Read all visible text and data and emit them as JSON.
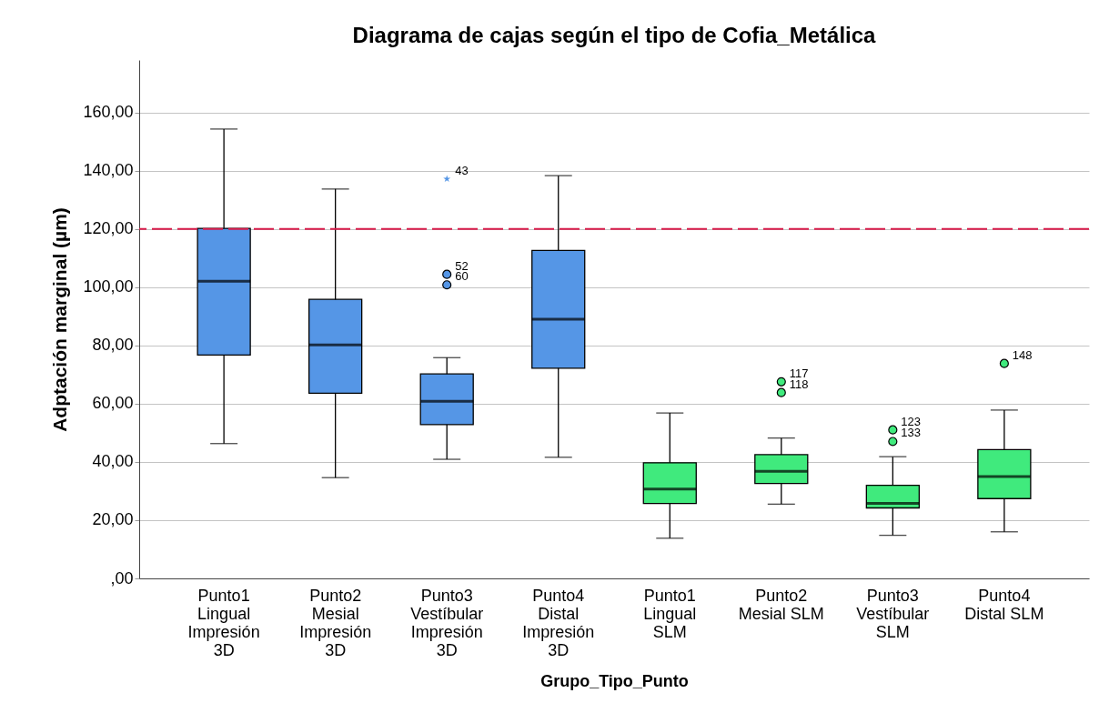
{
  "chart_data": {
    "type": "box",
    "title": "Diagrama de cajas según el tipo de Cofia_Metálica",
    "xlabel": "Grupo_Tipo_Punto",
    "ylabel": "Adptación marginal (µm)",
    "categories": [
      "Punto1 Lingual Impresión 3D",
      "Punto2 Mesial Impresión 3D",
      "Punto3 Vestíbular Impresión 3D",
      "Punto4 Distal Impresión 3D",
      "Punto1 Lingual SLM",
      "Punto2 Mesial SLM",
      "Punto3 Vestíbular SLM",
      "Punto4 Distal SLM"
    ],
    "colors": [
      "#5596e6",
      "#5596e6",
      "#5596e6",
      "#5596e6",
      "#40ea7d",
      "#40ea7d",
      "#40ea7d",
      "#40ea7d"
    ],
    "boxes": [
      {
        "low": 46.3,
        "q1": 76.7,
        "median": 102,
        "q3": 120.2,
        "high": 154.3
      },
      {
        "low": 34.6,
        "q1": 63.6,
        "median": 80.2,
        "q3": 95.8,
        "high": 133.7
      },
      {
        "low": 40.9,
        "q1": 52.8,
        "median": 60.8,
        "q3": 70.2,
        "high": 75.8
      },
      {
        "low": 41.6,
        "q1": 72.2,
        "median": 89,
        "q3": 112.6,
        "high": 138.3
      },
      {
        "low": 13.8,
        "q1": 25.7,
        "median": 30.7,
        "q3": 39.7,
        "high": 56.8
      },
      {
        "low": 25.5,
        "q1": 32.6,
        "median": 36.8,
        "q3": 42.5,
        "high": 48.2
      },
      {
        "low": 14.8,
        "q1": 24.2,
        "median": 25.8,
        "q3": 32,
        "high": 41.8
      },
      {
        "low": 16,
        "q1": 27.4,
        "median": 35,
        "q3": 44.2,
        "high": 57.8
      }
    ],
    "series": [
      {
        "type": "scatter",
        "marker": "star",
        "color": "#5596e6",
        "x": [
          "Punto3 Vestíbular Impresión 3D"
        ],
        "values": [
          137.2
        ]
      },
      {
        "type": "scatter",
        "marker": "circle",
        "color": "#5596e6",
        "x": [
          "Punto3 Vestíbular Impresión 3D",
          "Punto3 Vestíbular Impresión 3D"
        ],
        "values": [
          104.4,
          100.8
        ]
      },
      {
        "type": "scatter",
        "marker": "circle",
        "color": "#40ea7d",
        "x": [
          "Punto2 Mesial SLM",
          "Punto2 Mesial SLM",
          "Punto3 Vestíbular SLM",
          "Punto3 Vestíbular SLM",
          "Punto4 Distal SLM"
        ],
        "values": [
          67.5,
          63.8,
          51,
          47,
          73.8
        ]
      }
    ],
    "annotations": [
      {
        "text": "43",
        "x": "Punto3 Vestíbular Impresión 3D",
        "y": 137.2
      },
      {
        "text": "52",
        "x": "Punto3 Vestíbular Impresión 3D",
        "y": 104.4
      },
      {
        "text": "60",
        "x": "Punto3 Vestíbular Impresión 3D",
        "y": 100.8
      },
      {
        "text": "117",
        "x": "Punto2 Mesial SLM",
        "y": 67.5
      },
      {
        "text": "118",
        "x": "Punto2 Mesial SLM",
        "y": 63.8
      },
      {
        "text": "123",
        "x": "Punto3 Vestíbular SLM",
        "y": 51
      },
      {
        "text": "133",
        "x": "Punto3 Vestíbular SLM",
        "y": 47
      },
      {
        "text": "148",
        "x": "Punto4 Distal SLM",
        "y": 73.8
      }
    ],
    "ref_lines": [
      {
        "axis": "y",
        "value": 120,
        "color": "#d81b4a",
        "line_style": "dashed"
      }
    ],
    "ylim": [
      0,
      178
    ],
    "yticks": [
      {
        "value": 0,
        "label": ",00"
      },
      {
        "value": 20,
        "label": "20,00"
      },
      {
        "value": 40,
        "label": "40,00"
      },
      {
        "value": 60,
        "label": "60,00"
      },
      {
        "value": 80,
        "label": "80,00"
      },
      {
        "value": 100,
        "label": "100,00"
      },
      {
        "value": 120,
        "label": "120,00"
      },
      {
        "value": 140,
        "label": "140,00"
      },
      {
        "value": 160,
        "label": "160,00"
      }
    ],
    "grid": "y"
  }
}
